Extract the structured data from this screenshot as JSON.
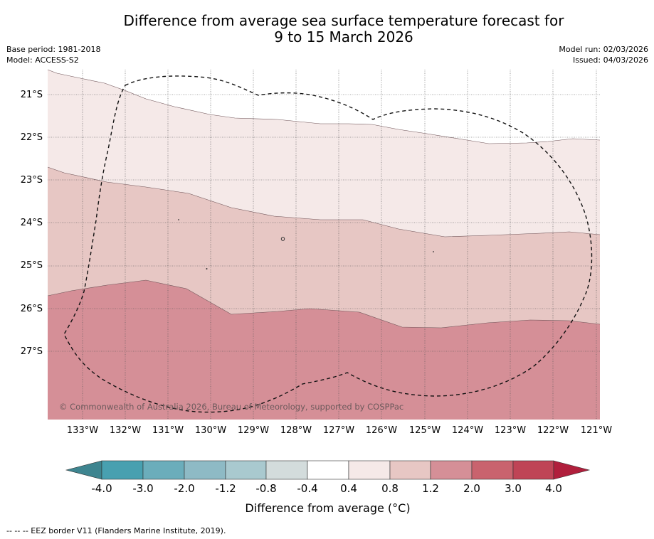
{
  "header": {
    "title_line1": "Difference from average sea surface temperature forecast for",
    "title_line2": "9 to 15 March 2026",
    "base_period": "Base period: 1981-2018",
    "model": "Model: ACCESS-S2",
    "model_run": "Model run: 02/03/2026",
    "issued": "Issued: 04/03/2026"
  },
  "map": {
    "lat_labels": [
      "21°S",
      "22°S",
      "23°S",
      "24°S",
      "25°S",
      "26°S",
      "27°S"
    ],
    "lon_labels": [
      "133°W",
      "132°W",
      "131°W",
      "130°W",
      "129°W",
      "128°W",
      "127°W",
      "126°W",
      "125°W",
      "124°W",
      "123°W",
      "122°W",
      "121°W"
    ],
    "copyright": "© Commonwealth of Australia 2026, Bureau of Meteorology, supported by COSPPac",
    "band_colors": {
      "band_0_4_0_8": "#f5e9e8",
      "band_0_8_1_2": "#e7c7c4",
      "band_1_2_2_0": "#d58f97"
    }
  },
  "colorbar": {
    "ticks": [
      "-4.0",
      "-3.0",
      "-2.0",
      "-1.2",
      "-0.8",
      "-0.4",
      "0.4",
      "0.8",
      "1.2",
      "2.0",
      "3.0",
      "4.0"
    ],
    "colors": [
      "#3e8590",
      "#48a0b0",
      "#6badbb",
      "#8ebac5",
      "#a9c9cf",
      "#d3dcdc",
      "#ffffff",
      "#f5e9e8",
      "#e7c7c4",
      "#d58f97",
      "#c9636e",
      "#bf4456",
      "#b01f3c"
    ],
    "label": "Difference from average (°C)"
  },
  "footer": {
    "eez_legend": "--  --  -- EEZ border V11 (Flanders Marine Institute, 2019)."
  }
}
